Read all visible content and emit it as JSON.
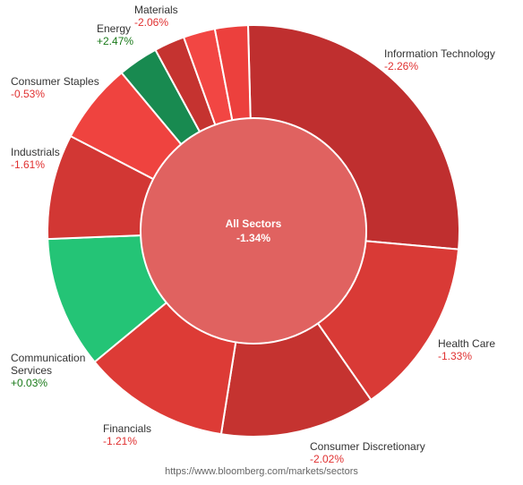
{
  "colors": {
    "background": "#ffffff",
    "center": "#e06260",
    "positive_text": "#1a7a1a",
    "negative_text": "#e03030",
    "separator": "#ffffff"
  },
  "chart_data": {
    "type": "pie",
    "variant": "donut",
    "center": {
      "label": "All Sectors",
      "value": "-1.34%"
    },
    "slices": [
      {
        "label": "Information Technology",
        "value_text": "-2.26%",
        "change": -2.26,
        "weight": 28.0,
        "color": "#bf2f2f"
      },
      {
        "label": "Health Care",
        "value_text": "-1.33%",
        "change": -1.33,
        "weight": 14.5,
        "color": "#d93a36"
      },
      {
        "label": "Consumer Discretionary",
        "value_text": "-2.02%",
        "change": -2.02,
        "weight": 12.7,
        "color": "#c53330"
      },
      {
        "label": "Financials",
        "value_text": "-1.21%",
        "change": -1.21,
        "weight": 12.0,
        "color": "#dd3b36"
      },
      {
        "label": "Communication Services",
        "value_text": "+0.03%",
        "change": 0.03,
        "weight": 10.8,
        "color": "#24c476"
      },
      {
        "label": "Industrials",
        "value_text": "-1.61%",
        "change": -1.61,
        "weight": 8.6,
        "color": "#d23734"
      },
      {
        "label": "Consumer Staples",
        "value_text": "-0.53%",
        "change": -0.53,
        "weight": 6.6,
        "color": "#ef433f"
      },
      {
        "label": "Energy",
        "value_text": "+2.47%",
        "change": 2.47,
        "weight": 3.3,
        "color": "#188a50"
      },
      {
        "label": "Materials",
        "value_text": "-2.06%",
        "change": -2.06,
        "weight": 2.5,
        "color": "#c53330"
      },
      {
        "label": "",
        "value_text": "",
        "change": null,
        "weight": 2.6,
        "color": "#f24643"
      },
      {
        "label": "",
        "value_text": "",
        "change": null,
        "weight": 2.7,
        "color": "#ec403d"
      }
    ]
  },
  "source_url": "https://www.bloomberg.com/markets/sectors"
}
